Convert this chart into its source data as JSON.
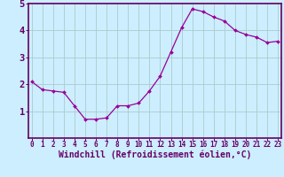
{
  "x": [
    0,
    1,
    2,
    3,
    4,
    5,
    6,
    7,
    8,
    9,
    10,
    11,
    12,
    13,
    14,
    15,
    16,
    17,
    18,
    19,
    20,
    21,
    22,
    23
  ],
  "y": [
    2.1,
    1.8,
    1.75,
    1.7,
    1.2,
    0.7,
    0.7,
    0.75,
    1.2,
    1.2,
    1.3,
    1.75,
    2.3,
    3.2,
    4.1,
    4.8,
    4.7,
    4.5,
    4.35,
    4.0,
    3.85,
    3.75,
    3.55,
    3.6
  ],
  "xlabel": "Windchill (Refroidissement éolien,°C)",
  "ylim": [
    0,
    5
  ],
  "yticks": [
    1,
    2,
    3,
    4,
    5
  ],
  "xticks": [
    0,
    1,
    2,
    3,
    4,
    5,
    6,
    7,
    8,
    9,
    10,
    11,
    12,
    13,
    14,
    15,
    16,
    17,
    18,
    19,
    20,
    21,
    22,
    23
  ],
  "line_color": "#990099",
  "marker_color": "#990099",
  "bg_color": "#cceeff",
  "grid_color": "#aacccc",
  "axis_label_color": "#660066",
  "tick_label_color": "#660066",
  "border_color": "#660066",
  "xlabel_fontsize": 7.0,
  "ytick_fontsize": 7.5,
  "xtick_fontsize": 5.5
}
